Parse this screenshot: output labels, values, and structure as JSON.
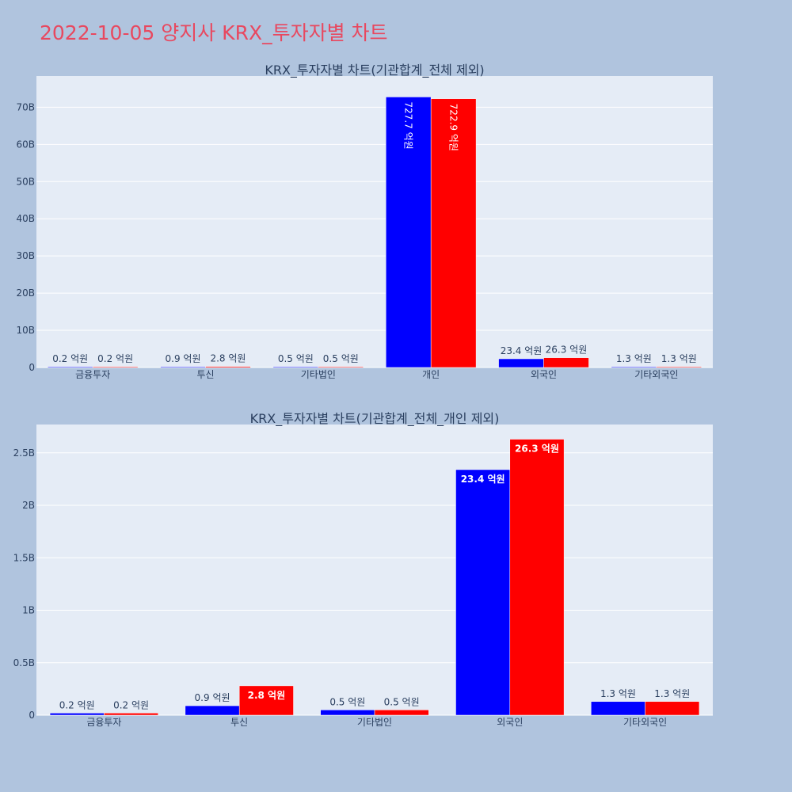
{
  "title": "2022-10-05 양지사 KRX_투자자별 차트",
  "colors": {
    "series_a": "#0000ff",
    "series_b": "#ff0000",
    "plot_bg": "#e5ecf6",
    "page_bg": "#b0c4de",
    "title": "#e8485f"
  },
  "chart_data": [
    {
      "type": "bar",
      "title": "KRX_투자자별 차트(기관합계_전체 제외)",
      "categories": [
        "금융투자",
        "투신",
        "기타법인",
        "개인",
        "외국인",
        "기타외국인"
      ],
      "series": [
        {
          "values": [
            0.02,
            0.09,
            0.05,
            72.77,
            2.34,
            0.13
          ],
          "labels": [
            "0.2 억원",
            "0.9 억원",
            "0.5 억원",
            "727.7 억원",
            "23.4 억원",
            "1.3 억원"
          ]
        },
        {
          "values": [
            0.02,
            0.28,
            0.05,
            72.29,
            2.63,
            0.13
          ],
          "labels": [
            "0.2 억원",
            "2.8 억원",
            "0.5 억원",
            "722.9 억원",
            "26.3 억원",
            "1.3 억원"
          ]
        }
      ],
      "yticks": [
        0,
        10,
        20,
        30,
        40,
        50,
        60,
        70
      ],
      "ytick_labels": [
        "0",
        "10B",
        "20B",
        "30B",
        "40B",
        "50B",
        "60B",
        "70B"
      ],
      "ylim": [
        0,
        78.4
      ],
      "grid": true
    },
    {
      "type": "bar",
      "title": "KRX_투자자별 차트(기관합계_전체_개인 제외)",
      "categories": [
        "금융투자",
        "투신",
        "기타법인",
        "외국인",
        "기타외국인"
      ],
      "series": [
        {
          "values": [
            0.02,
            0.09,
            0.05,
            2.34,
            0.13
          ],
          "labels": [
            "0.2 억원",
            "0.9 억원",
            "0.5 억원",
            "23.4 억원",
            "1.3 억원"
          ]
        },
        {
          "values": [
            0.02,
            0.28,
            0.05,
            2.63,
            0.13
          ],
          "labels": [
            "0.2 억원",
            "2.8 억원",
            "0.5 억원",
            "26.3 억원",
            "1.3 억원"
          ]
        }
      ],
      "yticks": [
        0,
        0.5,
        1,
        1.5,
        2,
        2.5
      ],
      "ytick_labels": [
        "0",
        "0.5B",
        "1B",
        "1.5B",
        "2B",
        "2.5B"
      ],
      "ylim": [
        0,
        2.77
      ],
      "grid": true
    }
  ]
}
